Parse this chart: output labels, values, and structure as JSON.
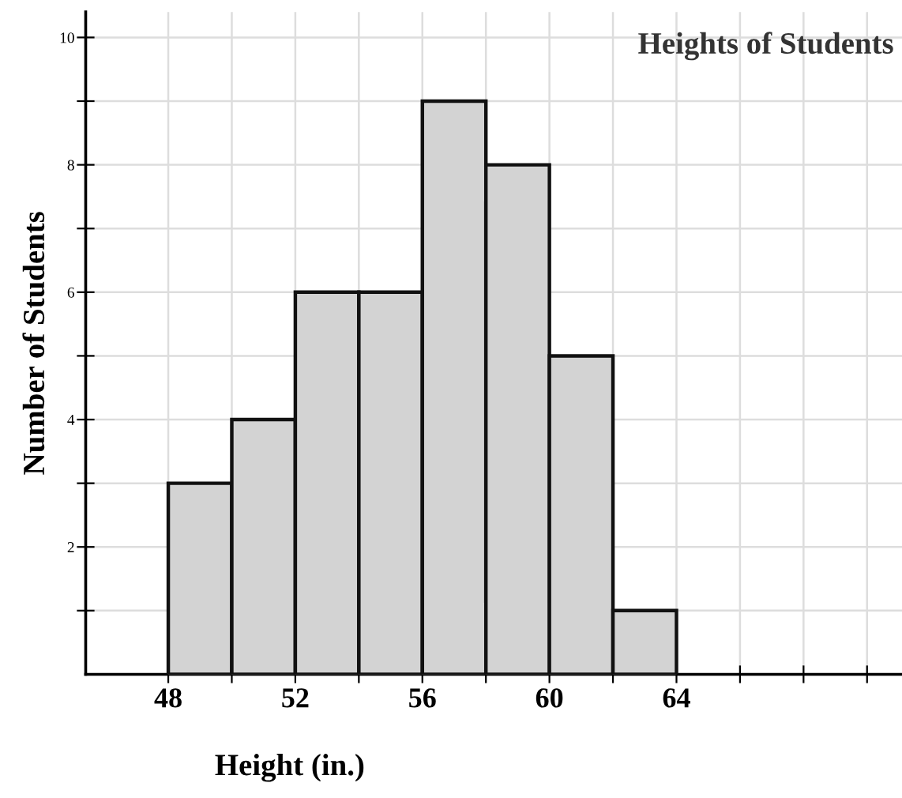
{
  "chart_data": {
    "type": "histogram",
    "title": "Heights of Students",
    "xlabel": "Height (in.)",
    "ylabel": "Number of Students",
    "bins": [
      48,
      50,
      52,
      54,
      56,
      58,
      60,
      62,
      64
    ],
    "values": [
      3,
      4,
      6,
      6,
      9,
      8,
      5,
      1
    ],
    "color": "#d3d3d3",
    "xlim": [
      45.4,
      71.1
    ],
    "ylim": [
      0,
      10.4
    ],
    "xticks": [
      48,
      {
        "value": 50,
        "label": null
      },
      52,
      {
        "value": 54,
        "label": null
      },
      56,
      {
        "value": 58,
        "label": null
      },
      60,
      {
        "value": 62,
        "label": null
      },
      64,
      {
        "value": 66,
        "label": null
      },
      {
        "value": 68,
        "label": null
      },
      {
        "value": 70,
        "label": null
      }
    ],
    "yticks": [
      {
        "value": 1,
        "label": null
      },
      2,
      {
        "value": 3,
        "label": null
      },
      4,
      {
        "value": 5,
        "label": null
      },
      6,
      {
        "value": 7,
        "label": null
      },
      8,
      {
        "value": 9,
        "label": null
      },
      10
    ],
    "grid": true
  }
}
